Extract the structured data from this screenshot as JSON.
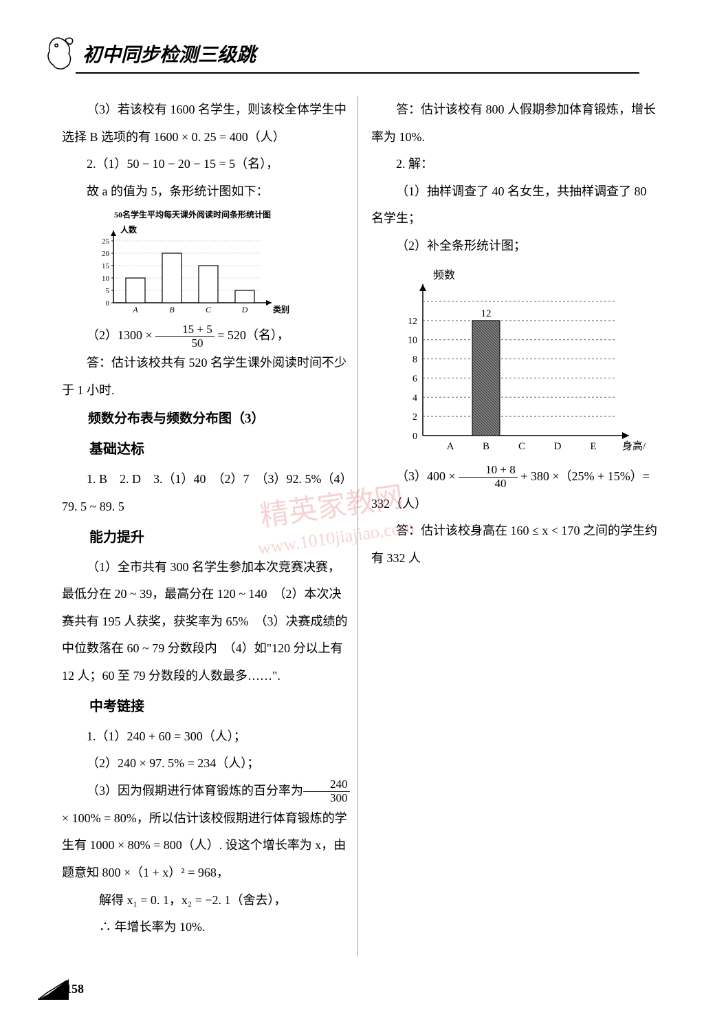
{
  "header": {
    "title": "初中同步检测三级跳"
  },
  "left": {
    "p1": "（3）若该校有 1600 名学生，则该校全体学生中选择 B 选项的有 1600 × 0. 25 = 400（人）",
    "p2": "2.（1）50 − 10 − 20 − 15 = 5（名），",
    "p3": "故 a 的值为 5，条形统计图如下：",
    "chart1": {
      "title": "50名学生平均每天课外阅读时间条形统计图",
      "ylabel": "人数",
      "xlabel": "类别",
      "categories": [
        "A",
        "B",
        "C",
        "D"
      ],
      "values": [
        10,
        20,
        15,
        5
      ],
      "yticks": [
        0,
        5,
        10,
        15,
        20,
        25
      ],
      "bar_fill": "#ffffff",
      "bar_stroke": "#000000",
      "axis_color": "#000000"
    },
    "p4_pre": "（2）1300 × ",
    "p4_num": "15 + 5",
    "p4_den": "50",
    "p4_post": " = 520（名），",
    "p5": "答：估计该校共有 520 名学生课外阅读时间不少于 1 小时.",
    "section1": "频数分布表与频数分布图（3）",
    "sub1": "基础达标",
    "ans1": "1. B　2. D　3.（1）40　（2）7　（3）92. 5%（4）79. 5 ~ 89. 5",
    "sub2": "能力提升",
    "p6": "（1）全市共有 300 名学生参加本次竞赛决赛，最低分在 20 ~ 39，最高分在 120 ~ 140　（2）本次决赛共有 195 人获奖，获奖率为 65%　（3）决赛成绩的中位数落在 60 ~ 79 分数段内　（4）如\"120 分以上有 12 人；60 至 79 分数段的人数最多……\".",
    "sub3": "中考链接",
    "p7": "1.（1）240 + 60 = 300（人）；",
    "p8": "（2）240 × 97. 5% = 234（人）；",
    "p9_pre": "（3）因为假期进行体育锻炼的百分率为",
    "p9_num": "240",
    "p9_den": "300",
    "p9_post": " × 100% = 80%，所以估计该校假期进行体育锻炼的学生有 1000 × 80% = 800（人）. 设这个增长率为 x，由题意知 800 ×（1 + x）² = 968，",
    "p10": "解得 x₁ = 0. 1，x₂ = −2. 1（舍去），",
    "p11": "∴ 年增长率为 10%."
  },
  "right": {
    "p1": "答：估计该校有 800 人假期参加体育锻炼，增长率为 10%.",
    "p2": "2. 解：",
    "p3": "（1）抽样调查了 40 名女生，共抽样调查了 80 名学生；",
    "p4": "（2）补全条形统计图；",
    "chart2": {
      "ylabel": "频数",
      "xlabel": "身高/cm",
      "categories": [
        "A",
        "B",
        "C",
        "D",
        "E"
      ],
      "highlight_index": 1,
      "highlight_value": 12,
      "highlight_label": "12",
      "yticks": [
        0,
        2,
        4,
        6,
        8,
        10,
        12
      ],
      "bar_fill": "#555555",
      "axis_color": "#000000",
      "grid_dash": "3,3"
    },
    "p5_pre": "（3）400 × ",
    "p5_num": "10 + 8",
    "p5_den": "40",
    "p5_post": " + 380 ×（25% + 15%）= 332（人）",
    "p6": "答：估计该校身高在 160 ≤ x < 170 之间的学生约有 332 人"
  },
  "watermark": {
    "line1": "精英家教网",
    "line2": "www.1010jiajiao.com"
  },
  "page": "158"
}
